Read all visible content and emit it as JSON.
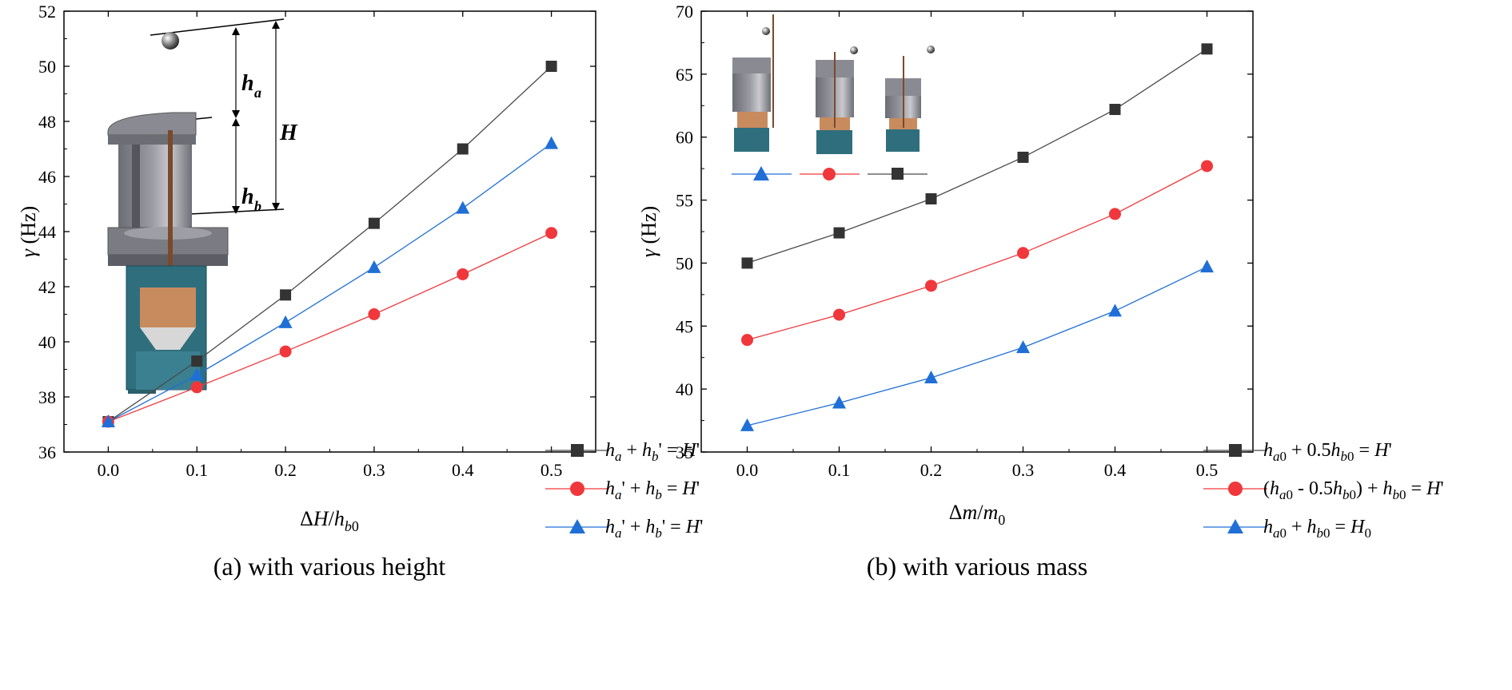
{
  "chart_data": [
    {
      "type": "line",
      "panel": "a",
      "caption": "(a) with various height",
      "xlabel_main": "ΔH/h",
      "xlabel_sub": "b0",
      "ylabel": "γ (Hz)",
      "xlim": [
        -0.05,
        0.55
      ],
      "ylim": [
        36,
        52
      ],
      "x_ticks": [
        "0.0",
        "0.1",
        "0.2",
        "0.3",
        "0.4",
        "0.5"
      ],
      "y_ticks": [
        "36",
        "38",
        "40",
        "42",
        "44",
        "46",
        "48",
        "50",
        "52"
      ],
      "x": [
        0.0,
        0.1,
        0.2,
        0.3,
        0.4,
        0.5
      ],
      "legend_position": "bottom-right",
      "series": [
        {
          "name": "h_a + h_b' = H'",
          "marker": "square",
          "color": "#333333",
          "line_color": "#4a4a4a",
          "values": [
            37.1,
            39.3,
            41.7,
            44.3,
            47.0,
            50.0
          ]
        },
        {
          "name": "h_a' + h_b = H'",
          "marker": "circle",
          "color": "#f0373c",
          "line_color": "#f0373c",
          "values": [
            37.1,
            38.35,
            39.65,
            41.0,
            42.45,
            43.95
          ]
        },
        {
          "name": "h_a' + h_b' = H'",
          "marker": "triangle",
          "color": "#1f6fd6",
          "line_color": "#1f6fd6",
          "values": [
            37.1,
            38.8,
            40.7,
            42.7,
            44.85,
            47.2
          ]
        }
      ],
      "annotations": [
        "h_a",
        "H",
        "h_b"
      ]
    },
    {
      "type": "line",
      "panel": "b",
      "caption": "(b) with various mass",
      "xlabel_main": "Δm/m",
      "xlabel_sub": "0",
      "ylabel": "γ (Hz)",
      "xlim": [
        -0.05,
        0.55
      ],
      "ylim": [
        35,
        70
      ],
      "x_ticks": [
        "0.0",
        "0.1",
        "0.2",
        "0.3",
        "0.4",
        "0.5"
      ],
      "y_ticks": [
        "35",
        "40",
        "45",
        "50",
        "55",
        "60",
        "65",
        "70"
      ],
      "x": [
        0.0,
        0.1,
        0.2,
        0.3,
        0.4,
        0.5
      ],
      "legend_position": "bottom-right",
      "series": [
        {
          "name": "h_a0 + 0.5h_b0 = H'",
          "marker": "square",
          "color": "#333333",
          "line_color": "#4a4a4a",
          "values": [
            50.0,
            52.4,
            55.1,
            58.4,
            62.2,
            67.0
          ]
        },
        {
          "name": "(h_a0 - 0.5h_b0) + h_b0 = H'",
          "marker": "circle",
          "color": "#f0373c",
          "line_color": "#f0373c",
          "values": [
            43.9,
            45.9,
            48.2,
            50.8,
            53.9,
            57.7
          ]
        },
        {
          "name": "h_a0 + h_b0 = H_0",
          "marker": "triangle",
          "color": "#1f6fd6",
          "line_color": "#1f6fd6",
          "values": [
            37.1,
            38.9,
            40.9,
            43.3,
            46.2,
            49.7
          ]
        }
      ]
    }
  ]
}
